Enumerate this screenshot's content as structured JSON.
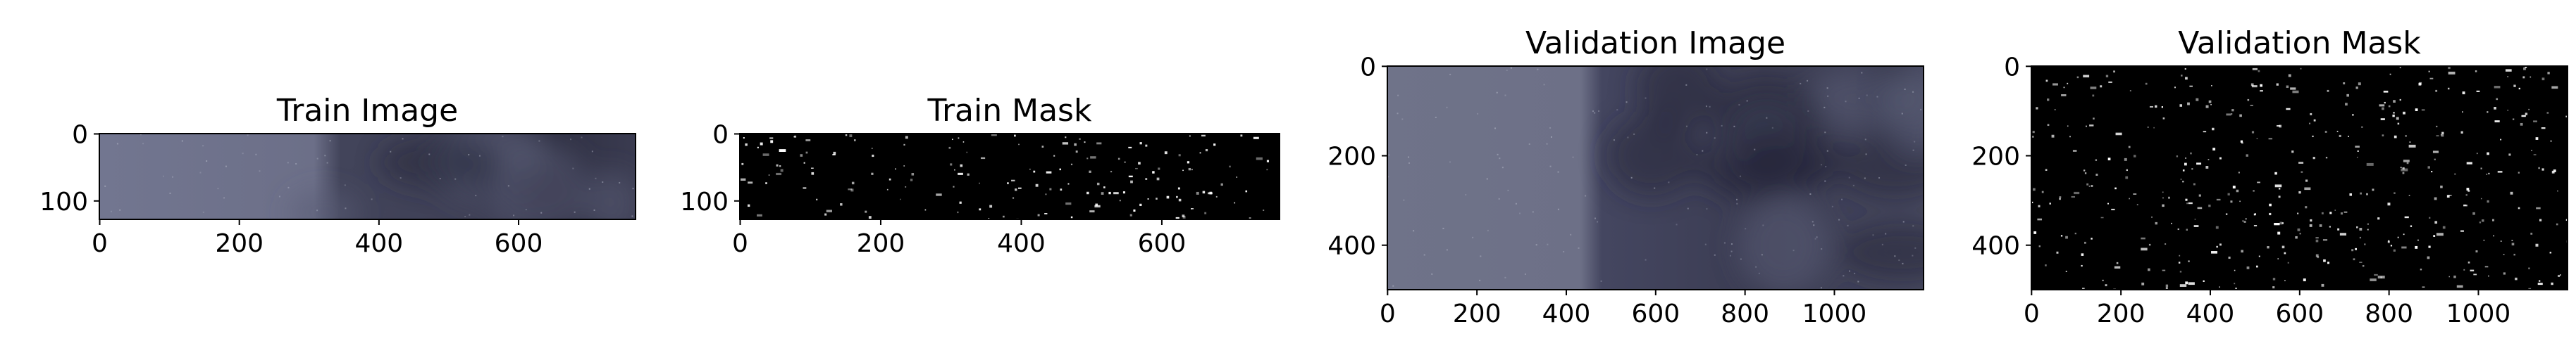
{
  "chart_data": [
    {
      "type": "image",
      "title": "Train Image",
      "xlim": [
        -0.5,
        767.5
      ],
      "ylim": [
        127.5,
        -0.5
      ],
      "xticks": [
        0,
        200,
        400,
        600
      ],
      "yticks": [
        0,
        100
      ]
    },
    {
      "type": "image",
      "title": "Train Mask",
      "cmap": "gray",
      "xlim": [
        -0.5,
        767.5
      ],
      "ylim": [
        127.5,
        -0.5
      ],
      "xticks": [
        0,
        200,
        400,
        600
      ],
      "yticks": [
        0,
        100
      ]
    },
    {
      "type": "image",
      "title": "Validation Image",
      "xlim": [
        -0.5,
        1199.5
      ],
      "ylim": [
        499.5,
        -0.5
      ],
      "xticks": [
        0,
        200,
        400,
        600,
        800,
        1000
      ],
      "yticks": [
        0,
        200,
        400
      ]
    },
    {
      "type": "image",
      "title": "Validation Mask",
      "cmap": "gray",
      "xlim": [
        -0.5,
        1199.5
      ],
      "ylim": [
        499.5,
        -0.5
      ],
      "xticks": [
        0,
        200,
        400,
        600,
        800,
        1000
      ],
      "yticks": [
        0,
        200,
        400
      ]
    }
  ]
}
